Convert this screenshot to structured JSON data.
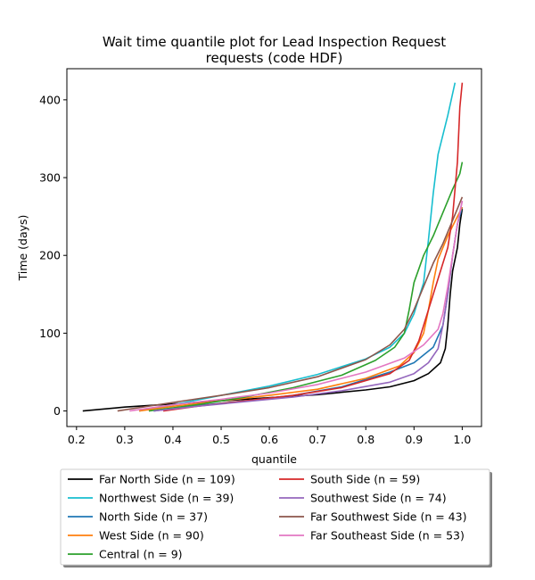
{
  "chart_data": {
    "type": "line",
    "title": "Wait time quantile plot for Lead Inspection Request",
    "subtitle": "requests (code HDF)",
    "xlabel": "quantile",
    "ylabel": "Time (days)",
    "xlim": [
      0.18,
      1.04
    ],
    "ylim": [
      -20,
      440
    ],
    "xticks": [
      0.2,
      0.3,
      0.4,
      0.5,
      0.6,
      0.7,
      0.8,
      0.9,
      1.0
    ],
    "xtick_labels": [
      "0.2",
      "0.3",
      "0.4",
      "0.5",
      "0.6",
      "0.7",
      "0.8",
      "0.9",
      "1.0"
    ],
    "yticks": [
      0,
      100,
      200,
      300,
      400
    ],
    "ytick_labels": [
      "0",
      "100",
      "200",
      "300",
      "400"
    ],
    "grid": false,
    "legend_position": "below",
    "series": [
      {
        "name": "Far North Side (n = 109)",
        "color": "#000000",
        "x": [
          0.213,
          0.3,
          0.4,
          0.5,
          0.6,
          0.7,
          0.8,
          0.85,
          0.9,
          0.93,
          0.955,
          0.965,
          0.97,
          0.975,
          0.98,
          0.985,
          0.99,
          0.995,
          1.0
        ],
        "y": [
          0,
          5,
          9,
          13,
          17,
          21,
          27,
          31,
          39,
          48,
          62,
          80,
          110,
          150,
          180,
          195,
          210,
          240,
          260
        ]
      },
      {
        "name": "Northwest Side (n = 39)",
        "color": "#17becf",
        "x": [
          0.33,
          0.4,
          0.5,
          0.6,
          0.7,
          0.8,
          0.85,
          0.88,
          0.9,
          0.92,
          0.93,
          0.94,
          0.95,
          0.97,
          0.985
        ],
        "y": [
          0,
          8,
          20,
          32,
          47,
          67,
          82,
          100,
          125,
          165,
          220,
          280,
          330,
          380,
          422
        ]
      },
      {
        "name": "North Side (n = 37)",
        "color": "#1f77b4",
        "x": [
          0.36,
          0.45,
          0.55,
          0.65,
          0.75,
          0.85,
          0.9,
          0.94,
          0.96,
          0.97,
          0.98,
          0.99,
          1.0
        ],
        "y": [
          0,
          7,
          13,
          20,
          31,
          50,
          62,
          82,
          110,
          150,
          200,
          240,
          262
        ]
      },
      {
        "name": "West Side (n = 90)",
        "color": "#ff7f0e",
        "x": [
          0.33,
          0.4,
          0.5,
          0.6,
          0.7,
          0.8,
          0.87,
          0.9,
          0.92,
          0.93,
          0.94,
          0.95,
          0.97,
          0.99,
          1.0
        ],
        "y": [
          0,
          6,
          13,
          20,
          28,
          42,
          58,
          75,
          100,
          130,
          165,
          195,
          225,
          250,
          262
        ]
      },
      {
        "name": "Central (n = 9)",
        "color": "#2ca02c",
        "x": [
          0.35,
          0.45,
          0.55,
          0.65,
          0.75,
          0.82,
          0.86,
          0.88,
          0.89,
          0.9,
          0.92,
          0.94,
          0.96,
          0.98,
          0.995,
          1.0
        ],
        "y": [
          0,
          8,
          18,
          30,
          46,
          65,
          82,
          100,
          130,
          165,
          200,
          225,
          255,
          285,
          305,
          320
        ]
      },
      {
        "name": "South Side (n = 59)",
        "color": "#d62728",
        "x": [
          0.38,
          0.45,
          0.55,
          0.65,
          0.75,
          0.85,
          0.89,
          0.91,
          0.93,
          0.95,
          0.97,
          0.98,
          0.99,
          0.995,
          1.0
        ],
        "y": [
          0,
          6,
          13,
          20,
          30,
          48,
          65,
          90,
          130,
          170,
          210,
          250,
          320,
          390,
          422
        ]
      },
      {
        "name": "Southwest Side (n = 74)",
        "color": "#9467bd",
        "x": [
          0.36,
          0.45,
          0.55,
          0.65,
          0.75,
          0.85,
          0.9,
          0.93,
          0.95,
          0.96,
          0.97,
          0.98,
          0.99,
          1.0
        ],
        "y": [
          0,
          6,
          12,
          18,
          26,
          37,
          48,
          62,
          80,
          110,
          150,
          200,
          240,
          270
        ]
      },
      {
        "name": "Far Southwest Side (n = 43)",
        "color": "#8c564b",
        "x": [
          0.285,
          0.4,
          0.5,
          0.6,
          0.7,
          0.8,
          0.85,
          0.88,
          0.9,
          0.92,
          0.94,
          0.96,
          0.98,
          1.0
        ],
        "y": [
          0,
          11,
          20,
          30,
          44,
          66,
          85,
          105,
          130,
          160,
          190,
          215,
          245,
          275
        ]
      },
      {
        "name": "Far Southeast Side (n = 53)",
        "color": "#e377c2",
        "x": [
          0.31,
          0.4,
          0.5,
          0.6,
          0.7,
          0.8,
          0.88,
          0.92,
          0.95,
          0.96,
          0.97,
          0.98,
          0.99,
          1.0
        ],
        "y": [
          0,
          8,
          15,
          23,
          34,
          50,
          68,
          85,
          105,
          125,
          160,
          200,
          240,
          270
        ]
      }
    ]
  }
}
